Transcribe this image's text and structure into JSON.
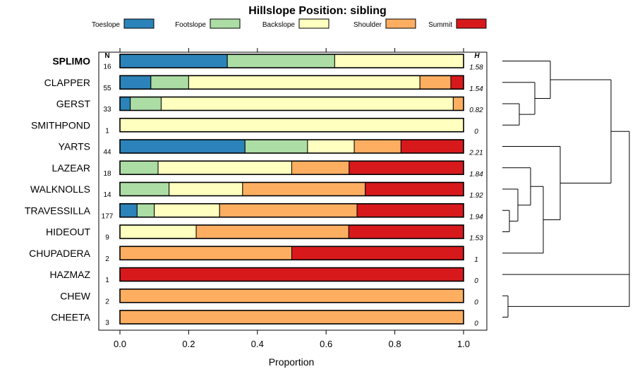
{
  "chart_data": {
    "type": "bar",
    "stacked": true,
    "orientation": "horizontal",
    "title": "Hillslope Position: sibling",
    "xlabel": "Proportion",
    "xlim": [
      0,
      1
    ],
    "xticks": [
      "0.0",
      "0.2",
      "0.4",
      "0.6",
      "0.8",
      "1.0"
    ],
    "legend_position": "top",
    "n_header": "N",
    "h_header": "H",
    "series": [
      {
        "name": "Toeslope",
        "color": "#2B83BA"
      },
      {
        "name": "Footslope",
        "color": "#ABDDA4"
      },
      {
        "name": "Backslope",
        "color": "#FFFFBF"
      },
      {
        "name": "Shoulder",
        "color": "#FDAE61"
      },
      {
        "name": "Summit",
        "color": "#D7191C"
      }
    ],
    "categories": [
      {
        "name": "SPLIMO",
        "bold": true,
        "n": "16",
        "h": "1.58",
        "values": [
          0.3125,
          0.3125,
          0.375,
          0,
          0
        ]
      },
      {
        "name": "CLAPPER",
        "bold": false,
        "n": "55",
        "h": "1.54",
        "values": [
          0.09,
          0.11,
          0.673,
          0.09,
          0.037
        ]
      },
      {
        "name": "GERST",
        "bold": false,
        "n": "33",
        "h": "0.82",
        "values": [
          0.03,
          0.09,
          0.85,
          0.03,
          0
        ]
      },
      {
        "name": "SMITHPOND",
        "bold": false,
        "n": "1",
        "h": "0",
        "values": [
          0,
          0,
          1,
          0,
          0
        ]
      },
      {
        "name": "YARTS",
        "bold": false,
        "n": "44",
        "h": "2.21",
        "values": [
          0.364,
          0.182,
          0.136,
          0.136,
          0.182
        ]
      },
      {
        "name": "LAZEAR",
        "bold": false,
        "n": "18",
        "h": "1.84",
        "values": [
          0,
          0.111,
          0.389,
          0.167,
          0.333
        ]
      },
      {
        "name": "WALKNOLLS",
        "bold": false,
        "n": "14",
        "h": "1.92",
        "values": [
          0,
          0.143,
          0.214,
          0.357,
          0.286
        ]
      },
      {
        "name": "TRAVESSILLA",
        "bold": false,
        "n": "177",
        "h": "1.94",
        "values": [
          0.05,
          0.05,
          0.19,
          0.4,
          0.31
        ]
      },
      {
        "name": "HIDEOUT",
        "bold": false,
        "n": "9",
        "h": "1.53",
        "values": [
          0,
          0,
          0.222,
          0.444,
          0.334
        ]
      },
      {
        "name": "CHUPADERA",
        "bold": false,
        "n": "2",
        "h": "1",
        "values": [
          0,
          0,
          0,
          0.5,
          0.5
        ]
      },
      {
        "name": "HAZMAZ",
        "bold": false,
        "n": "1",
        "h": "0",
        "values": [
          0,
          0,
          0,
          0,
          1
        ]
      },
      {
        "name": "CHEW",
        "bold": false,
        "n": "2",
        "h": "0",
        "values": [
          0,
          0,
          0,
          1,
          0
        ]
      },
      {
        "name": "CHEETA",
        "bold": false,
        "n": "3",
        "h": "0",
        "values": [
          0,
          0,
          0,
          1,
          0
        ]
      }
    ],
    "dendrogram": true
  }
}
